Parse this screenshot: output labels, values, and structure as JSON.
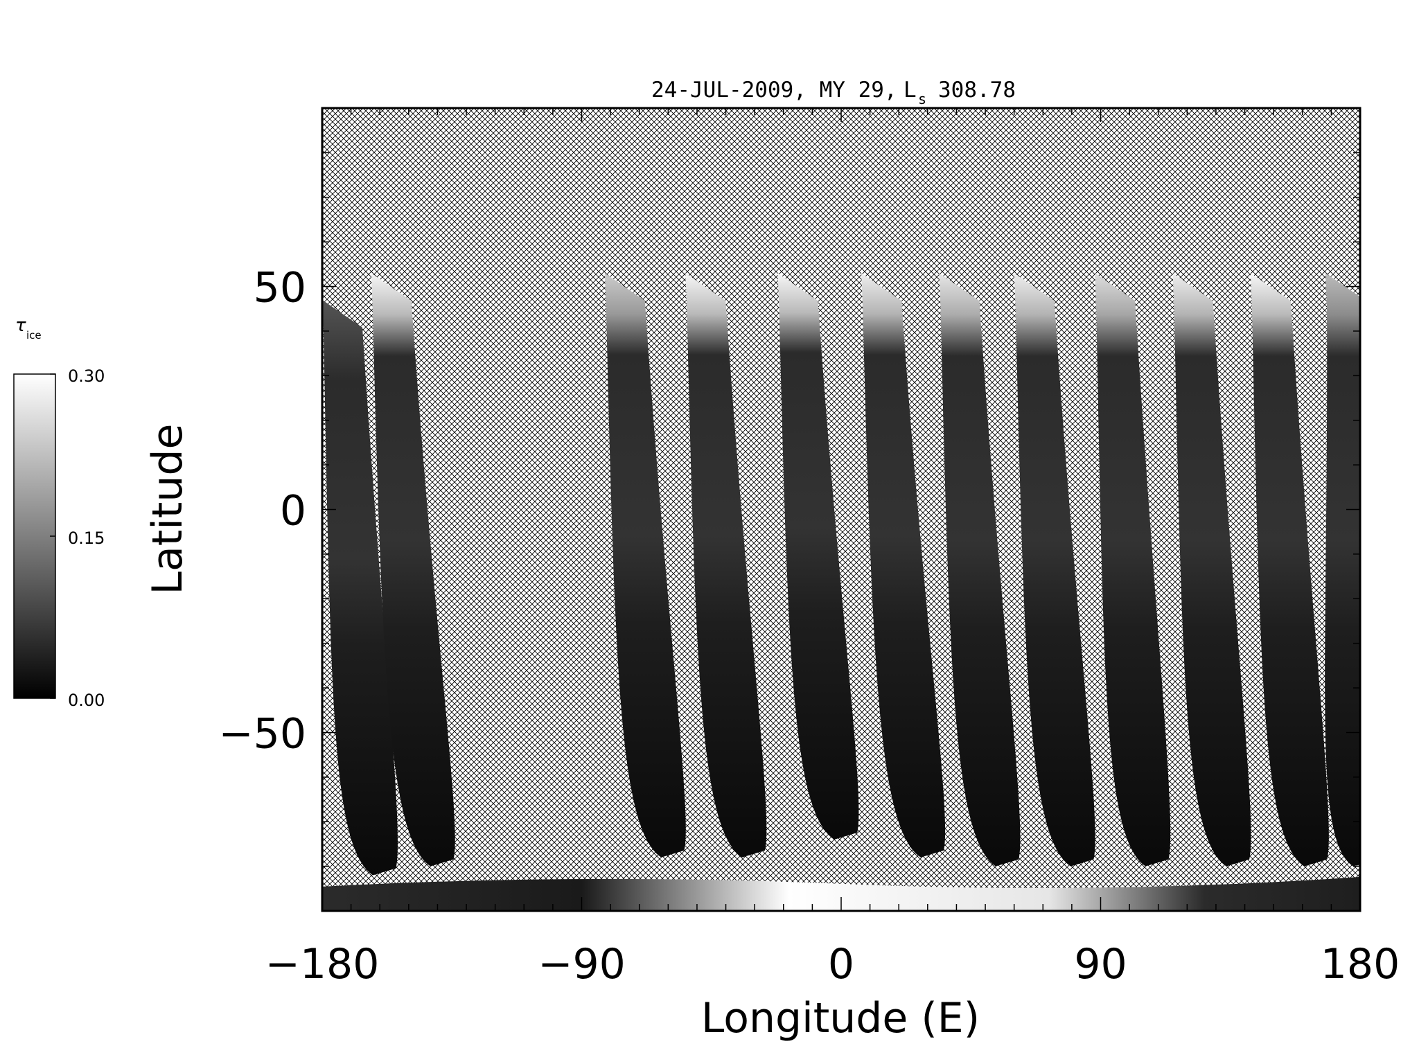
{
  "chart_data": {
    "type": "heatmap",
    "title": "24-JUL-2009, MY 29,",
    "title_ls_symbol": "L",
    "title_ls_subscript": "s",
    "title_ls_value": "308.78",
    "xlabel": "Longitude (E)",
    "ylabel": "Latitude",
    "xlim": [
      -180,
      180
    ],
    "ylim": [
      -90,
      90
    ],
    "x_ticks": [
      -180,
      -90,
      0,
      90,
      180
    ],
    "x_tick_labels": [
      "−180",
      "−90",
      "0",
      "90",
      "180"
    ],
    "y_ticks": [
      -50,
      0,
      50
    ],
    "y_tick_labels": [
      "−50",
      "0",
      "50"
    ],
    "no_data_fill": "crosshatch",
    "grid": false,
    "colorbar": {
      "symbol": "τ",
      "subscript": "ice",
      "min": 0.0,
      "mid": 0.15,
      "max": 0.3,
      "tick_labels": [
        "0.00",
        "0.15",
        "0.30"
      ],
      "colormap": "grayscale",
      "low_color": "#000000",
      "high_color": "#ffffff"
    },
    "swaths": [
      {
        "lon_north": -180,
        "lon_south": -160,
        "lat_north": 47,
        "lat_south": -82,
        "ice_north": 0.1
      },
      {
        "lon_north": -163,
        "lon_south": -140,
        "lat_north": 53,
        "lat_south": -80,
        "ice_north": 0.29
      },
      {
        "lon_north": -82,
        "lon_south": -60,
        "lat_north": 53,
        "lat_south": -78,
        "ice_north": 0.24
      },
      {
        "lon_north": -54,
        "lon_south": -32,
        "lat_north": 53,
        "lat_south": -78,
        "ice_north": 0.29
      },
      {
        "lon_north": -22,
        "lon_south": 0,
        "lat_north": 53,
        "lat_south": -74,
        "ice_north": 0.29
      },
      {
        "lon_north": 7,
        "lon_south": 30,
        "lat_north": 53,
        "lat_south": -78,
        "ice_north": 0.28
      },
      {
        "lon_north": 34,
        "lon_south": 56,
        "lat_north": 53,
        "lat_south": -80,
        "ice_north": 0.27
      },
      {
        "lon_north": 60,
        "lon_south": 82,
        "lat_north": 53,
        "lat_south": -80,
        "ice_north": 0.28
      },
      {
        "lon_north": 88,
        "lon_south": 108,
        "lat_north": 53,
        "lat_south": -80,
        "ice_north": 0.26
      },
      {
        "lon_north": 115,
        "lon_south": 136,
        "lat_north": 53,
        "lat_south": -80,
        "ice_north": 0.28
      },
      {
        "lon_north": 142,
        "lon_south": 163,
        "lat_north": 53,
        "lat_south": -80,
        "ice_north": 0.29
      },
      {
        "lon_north": 168,
        "lon_south": 180,
        "lat_north": 53,
        "lat_south": -80,
        "ice_north": 0.22
      }
    ],
    "south_polar_band": {
      "lat_top": -83,
      "lat_bottom": -90,
      "ice_west": 0.05,
      "ice_center": 0.3,
      "ice_east": 0.05
    }
  }
}
